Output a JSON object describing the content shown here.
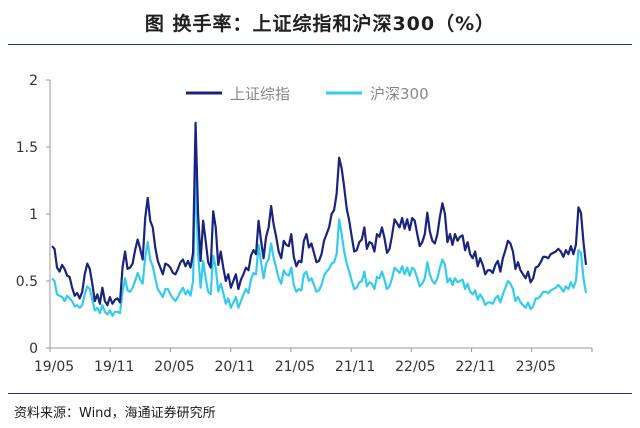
{
  "page": {
    "title": "图  换手率：上证综指和沪深300（%）",
    "source": "资料来源：Wind，海通证券研究所"
  },
  "chart_data": {
    "type": "line",
    "ylim": [
      0,
      2
    ],
    "y_ticks": [
      0,
      0.5,
      1,
      1.5,
      2
    ],
    "y_tick_labels": [
      "0",
      "0.5",
      "1",
      "1.5",
      "2"
    ],
    "x_tick_labels": [
      "19/05",
      "19/11",
      "20/05",
      "20/11",
      "21/05",
      "21/11",
      "22/05",
      "22/11",
      "23/05"
    ],
    "grid": false,
    "legend_position": "top",
    "series": [
      {
        "name": "上证综指",
        "color": "#1a237e",
        "values": [
          0.76,
          0.74,
          0.6,
          0.57,
          0.62,
          0.59,
          0.54,
          0.53,
          0.45,
          0.39,
          0.41,
          0.37,
          0.42,
          0.55,
          0.63,
          0.59,
          0.48,
          0.35,
          0.4,
          0.33,
          0.45,
          0.35,
          0.32,
          0.38,
          0.33,
          0.36,
          0.37,
          0.34,
          0.6,
          0.72,
          0.59,
          0.6,
          0.63,
          0.73,
          0.81,
          0.74,
          0.66,
          0.97,
          1.12,
          0.95,
          0.9,
          0.75,
          0.65,
          0.6,
          0.55,
          0.63,
          0.62,
          0.6,
          0.56,
          0.55,
          0.59,
          0.64,
          0.66,
          0.61,
          0.65,
          0.6,
          0.71,
          1.68,
          1.0,
          0.65,
          0.95,
          0.8,
          0.64,
          0.6,
          1.02,
          0.9,
          0.62,
          0.72,
          0.6,
          0.5,
          0.55,
          0.45,
          0.5,
          0.55,
          0.44,
          0.51,
          0.55,
          0.6,
          0.58,
          0.69,
          0.73,
          0.7,
          0.95,
          0.8,
          0.67,
          0.83,
          0.9,
          1.06,
          0.92,
          0.83,
          0.72,
          0.67,
          0.8,
          0.77,
          0.76,
          0.85,
          0.68,
          0.61,
          0.65,
          0.64,
          0.8,
          0.85,
          0.75,
          0.78,
          0.71,
          0.64,
          0.65,
          0.7,
          0.8,
          0.85,
          0.9,
          1.0,
          1.03,
          1.15,
          1.42,
          1.34,
          1.2,
          1.04,
          0.95,
          0.83,
          0.72,
          0.73,
          0.79,
          0.81,
          0.9,
          0.74,
          0.79,
          0.78,
          0.72,
          0.85,
          0.83,
          0.9,
          0.82,
          0.71,
          0.74,
          0.84,
          0.96,
          0.93,
          0.9,
          0.97,
          0.89,
          0.96,
          0.88,
          0.97,
          0.95,
          0.85,
          0.76,
          0.79,
          0.85,
          1.01,
          0.87,
          0.8,
          0.78,
          0.85,
          0.98,
          1.08,
          1.0,
          0.79,
          0.85,
          0.77,
          0.85,
          0.8,
          0.83,
          0.84,
          0.73,
          0.79,
          0.7,
          0.67,
          0.72,
          0.61,
          0.67,
          0.62,
          0.55,
          0.58,
          0.58,
          0.56,
          0.62,
          0.65,
          0.57,
          0.67,
          0.73,
          0.8,
          0.78,
          0.72,
          0.59,
          0.64,
          0.58,
          0.55,
          0.52,
          0.57,
          0.49,
          0.52,
          0.6,
          0.61,
          0.64,
          0.68,
          0.68,
          0.67,
          0.7,
          0.71,
          0.72,
          0.74,
          0.72,
          0.68,
          0.73,
          0.7,
          0.76,
          0.7,
          0.77,
          1.05,
          1.01,
          0.79,
          0.62
        ]
      },
      {
        "name": "沪深300",
        "color": "#33ccee",
        "values": [
          0.52,
          0.5,
          0.4,
          0.39,
          0.38,
          0.35,
          0.39,
          0.37,
          0.35,
          0.31,
          0.32,
          0.3,
          0.32,
          0.4,
          0.46,
          0.44,
          0.36,
          0.28,
          0.3,
          0.26,
          0.32,
          0.27,
          0.25,
          0.28,
          0.24,
          0.27,
          0.27,
          0.26,
          0.42,
          0.52,
          0.43,
          0.42,
          0.45,
          0.5,
          0.56,
          0.51,
          0.48,
          0.68,
          0.79,
          0.66,
          0.61,
          0.52,
          0.44,
          0.41,
          0.38,
          0.44,
          0.44,
          0.4,
          0.37,
          0.35,
          0.38,
          0.42,
          0.45,
          0.4,
          0.43,
          0.39,
          0.5,
          1.33,
          0.7,
          0.45,
          0.65,
          0.52,
          0.42,
          0.4,
          0.69,
          0.6,
          0.42,
          0.48,
          0.41,
          0.33,
          0.37,
          0.3,
          0.34,
          0.38,
          0.3,
          0.35,
          0.4,
          0.44,
          0.41,
          0.51,
          0.56,
          0.55,
          0.77,
          0.64,
          0.52,
          0.63,
          0.66,
          0.78,
          0.67,
          0.6,
          0.52,
          0.48,
          0.58,
          0.55,
          0.54,
          0.6,
          0.47,
          0.42,
          0.44,
          0.43,
          0.55,
          0.57,
          0.5,
          0.52,
          0.47,
          0.42,
          0.43,
          0.47,
          0.54,
          0.57,
          0.59,
          0.63,
          0.64,
          0.7,
          0.96,
          0.85,
          0.72,
          0.63,
          0.57,
          0.5,
          0.44,
          0.45,
          0.49,
          0.5,
          0.57,
          0.46,
          0.49,
          0.48,
          0.44,
          0.53,
          0.52,
          0.57,
          0.51,
          0.44,
          0.46,
          0.52,
          0.6,
          0.58,
          0.56,
          0.61,
          0.55,
          0.6,
          0.54,
          0.6,
          0.58,
          0.52,
          0.46,
          0.48,
          0.52,
          0.64,
          0.55,
          0.5,
          0.48,
          0.52,
          0.6,
          0.66,
          0.62,
          0.49,
          0.52,
          0.47,
          0.52,
          0.49,
          0.5,
          0.51,
          0.44,
          0.48,
          0.42,
          0.4,
          0.43,
          0.36,
          0.4,
          0.37,
          0.32,
          0.34,
          0.34,
          0.33,
          0.37,
          0.39,
          0.34,
          0.4,
          0.45,
          0.5,
          0.48,
          0.44,
          0.35,
          0.38,
          0.34,
          0.32,
          0.3,
          0.34,
          0.29,
          0.31,
          0.37,
          0.37,
          0.39,
          0.42,
          0.42,
          0.41,
          0.43,
          0.44,
          0.45,
          0.47,
          0.45,
          0.42,
          0.46,
          0.44,
          0.49,
          0.45,
          0.5,
          0.73,
          0.71,
          0.52,
          0.41
        ]
      }
    ]
  }
}
